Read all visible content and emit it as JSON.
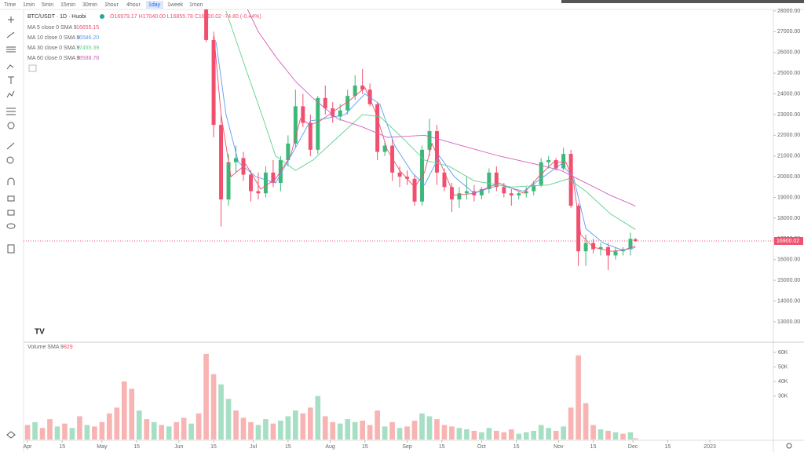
{
  "toolbar": {
    "intervals": [
      "Time",
      "1min",
      "5min",
      "15min",
      "30min",
      "1hour",
      "4hour",
      "1day",
      "1week",
      "1mon"
    ],
    "active": 7
  },
  "header": {
    "symbol": "BTC/USDT · 1D · Huobi",
    "ohlc": "O16979.17 H17040.00 L16855.78 C16900.02 -74.80 (-0.44%)",
    "volume_label": "Volume SMA 9",
    "volume_value": "829"
  },
  "chart_data": {
    "type": "candlestick",
    "up_color": "#3cb878",
    "down_color": "#f0506e",
    "x": [
      72,
      75,
      78,
      81,
      84,
      87,
      90,
      93,
      96,
      99,
      102,
      105,
      108,
      111,
      114,
      117,
      120,
      123,
      126,
      129,
      132,
      135,
      138,
      141,
      144,
      147,
      150,
      153,
      156,
      159,
      162,
      165,
      168,
      171,
      174,
      177,
      180,
      183,
      186,
      189,
      192,
      195,
      198,
      201,
      204,
      207,
      210,
      213,
      216,
      219,
      222,
      225,
      228,
      231,
      234,
      237,
      240,
      243,
      245
    ],
    "open": [
      28300,
      26600,
      22500,
      18900,
      20700,
      20900,
      20100,
      19300,
      19200,
      20200,
      19700,
      20800,
      21600,
      23400,
      22600,
      21300,
      23800,
      23300,
      22900,
      23200,
      23900,
      24400,
      24200,
      23500,
      21200,
      21500,
      20200,
      20000,
      19900,
      18800,
      21300,
      22200,
      20200,
      19500,
      18900,
      19200,
      19300,
      19100,
      19400,
      20200,
      19500,
      19200,
      19100,
      19200,
      19300,
      19600,
      20700,
      20800,
      20400,
      21100,
      18600,
      16400,
      16800,
      16500,
      16600,
      16200,
      16400,
      16500,
      16979.17
    ],
    "high": [
      28400,
      26800,
      23000,
      21100,
      21500,
      21200,
      20300,
      20200,
      20500,
      20800,
      21000,
      22000,
      24200,
      24000,
      23000,
      23900,
      24400,
      23600,
      23500,
      24200,
      24900,
      25200,
      24500,
      23600,
      21700,
      21800,
      20500,
      20300,
      20100,
      21500,
      22800,
      22500,
      20400,
      19700,
      19500,
      20000,
      19600,
      19500,
      20400,
      20500,
      19700,
      19400,
      19300,
      19500,
      19800,
      20900,
      21000,
      20900,
      21400,
      21300,
      18700,
      17200,
      17000,
      16800,
      16800,
      16600,
      16600,
      17300,
      17040
    ],
    "low": [
      26500,
      21900,
      17600,
      18600,
      20200,
      19800,
      18800,
      18900,
      19000,
      19500,
      19300,
      20500,
      21400,
      22400,
      21000,
      21100,
      23000,
      22600,
      22700,
      23000,
      23700,
      24000,
      23400,
      20800,
      21000,
      19800,
      19500,
      19600,
      18600,
      18600,
      21000,
      19600,
      19300,
      18300,
      18500,
      18900,
      18800,
      18900,
      19200,
      19300,
      19000,
      18600,
      18900,
      19000,
      19100,
      19500,
      20400,
      20300,
      20300,
      18500,
      15700,
      15700,
      16300,
      16200,
      15500,
      16000,
      16200,
      16200,
      16855.78
    ],
    "close": [
      26600,
      22500,
      18900,
      20700,
      20900,
      20100,
      19300,
      19200,
      20200,
      19700,
      20800,
      21600,
      23400,
      22600,
      21300,
      23800,
      23300,
      22900,
      23200,
      23900,
      24400,
      24200,
      23500,
      21200,
      21500,
      20200,
      20000,
      19900,
      18800,
      21300,
      22200,
      20200,
      19500,
      18900,
      19200,
      19300,
      19100,
      19400,
      20200,
      19500,
      19200,
      19100,
      19200,
      19300,
      19600,
      20700,
      20800,
      20400,
      21100,
      18600,
      16400,
      16800,
      16500,
      16600,
      16200,
      16400,
      16500,
      17000,
      16900.02
    ],
    "series": [
      {
        "name": "MA 5 close 0 SMA 9",
        "legend_value": "16655.15",
        "color": "#f0506e",
        "x": [
          75,
          78,
          82,
          88,
          94,
          100,
          106,
          110,
          114,
          118,
          124,
          130,
          136,
          140,
          145,
          150,
          156,
          160,
          163,
          167,
          172,
          180,
          190,
          200,
          206,
          212,
          217,
          220,
          223,
          228,
          235,
          240,
          245
        ],
        "values": [
          27000,
          23000,
          20000,
          20600,
          19400,
          19900,
          21000,
          22800,
          22500,
          22700,
          23200,
          23700,
          24300,
          23200,
          21300,
          20300,
          19500,
          20200,
          21600,
          20500,
          19100,
          19200,
          19700,
          19200,
          20000,
          20700,
          20700,
          19800,
          17200,
          16600,
          16400,
          16450,
          16655.15
        ]
      },
      {
        "name": "MA 10 close 0 SMA 9",
        "legend_value": "16586.20",
        "color": "#5b9cf6",
        "x": [
          76,
          80,
          85,
          92,
          100,
          108,
          114,
          120,
          128,
          136,
          142,
          148,
          155,
          160,
          166,
          172,
          180,
          190,
          200,
          208,
          215,
          220,
          225,
          232,
          240,
          245
        ],
        "values": [
          26500,
          23000,
          20700,
          20000,
          19700,
          21400,
          22700,
          22800,
          23000,
          24000,
          23500,
          21500,
          20200,
          19600,
          21000,
          20000,
          19200,
          19600,
          19300,
          20000,
          20600,
          20000,
          17500,
          16800,
          16450,
          16586.2
        ]
      },
      {
        "name": "MA 30 close 0 SMA 9",
        "legend_value": "17455.39",
        "color": "#5fd08a",
        "x": [
          80,
          88,
          95,
          100,
          108,
          115,
          125,
          135,
          142,
          150,
          160,
          170,
          180,
          195,
          210,
          218,
          225,
          235,
          245
        ],
        "values": [
          28000,
          25200,
          22800,
          21000,
          20300,
          20800,
          21900,
          23000,
          22900,
          22000,
          20800,
          20500,
          19800,
          19500,
          19600,
          19900,
          19300,
          18200,
          17455.39
        ]
      },
      {
        "name": "MA 60 close 0 SMA 9",
        "legend_value": "18588.78",
        "color": "#d45fbb",
        "x": [
          85,
          93,
          100,
          108,
          115,
          125,
          135,
          145,
          160,
          175,
          190,
          205,
          215,
          225,
          235,
          245
        ],
        "values": [
          29000,
          27000,
          25800,
          24600,
          23800,
          22800,
          22400,
          21900,
          22000,
          21500,
          21000,
          20600,
          20300,
          19700,
          19100,
          18588.78
        ]
      }
    ],
    "last_price": {
      "value": 16900.02,
      "label": "16900.02"
    },
    "ylim": [
      12050,
      28340
    ],
    "yticks": [
      {
        "value": 13000,
        "label": "13000.00"
      },
      {
        "value": 14000,
        "label": "14000.00"
      },
      {
        "value": 15000,
        "label": "15000.00"
      },
      {
        "value": 16000,
        "label": "16000.00"
      },
      {
        "value": 17000,
        "label": "17000.00"
      },
      {
        "value": 18000,
        "label": "18000.00"
      },
      {
        "value": 19000,
        "label": "19000.00"
      },
      {
        "value": 20000,
        "label": "20000.00"
      },
      {
        "value": 21000,
        "label": "21000.00"
      },
      {
        "value": 22000,
        "label": "22000.00"
      },
      {
        "value": 23000,
        "label": "23000.00"
      },
      {
        "value": 24000,
        "label": "24000.00"
      },
      {
        "value": 25000,
        "label": "25000.00"
      },
      {
        "value": 26000,
        "label": "26000.00"
      },
      {
        "value": 27000,
        "label": "27000.00"
      },
      {
        "value": 28000,
        "label": "28000.00"
      }
    ],
    "xlim": [
      -1.6,
      300.6
    ],
    "xticks": [
      {
        "value": 0,
        "label": "Apr"
      },
      {
        "value": 14,
        "label": "15"
      },
      {
        "value": 30,
        "label": "May"
      },
      {
        "value": 44,
        "label": "15"
      },
      {
        "value": 61,
        "label": "Jun"
      },
      {
        "value": 75,
        "label": "15"
      },
      {
        "value": 91,
        "label": "Jul"
      },
      {
        "value": 105,
        "label": "15"
      },
      {
        "value": 122,
        "label": "Aug"
      },
      {
        "value": 136,
        "label": "15"
      },
      {
        "value": 153,
        "label": "Sep"
      },
      {
        "value": 167,
        "label": "15"
      },
      {
        "value": 183,
        "label": "Oct"
      },
      {
        "value": 197,
        "label": "15"
      },
      {
        "value": 214,
        "label": "Nov"
      },
      {
        "value": 228,
        "label": "15"
      },
      {
        "value": 244,
        "label": "Dec"
      },
      {
        "value": 258,
        "label": "15"
      },
      {
        "value": 275,
        "label": "2023"
      }
    ],
    "volume": {
      "x": [
        0,
        3,
        6,
        9,
        12,
        15,
        18,
        21,
        24,
        27,
        30,
        33,
        36,
        39,
        42,
        45,
        48,
        51,
        54,
        57,
        60,
        63,
        66,
        69,
        72,
        75,
        78,
        81,
        84,
        87,
        90,
        93,
        96,
        99,
        102,
        105,
        108,
        111,
        114,
        117,
        120,
        123,
        126,
        129,
        132,
        135,
        138,
        141,
        144,
        147,
        150,
        153,
        156,
        159,
        162,
        165,
        168,
        171,
        174,
        177,
        180,
        183,
        186,
        189,
        192,
        195,
        198,
        201,
        204,
        207,
        210,
        213,
        216,
        219,
        222,
        225,
        228,
        231,
        234,
        237,
        240,
        243,
        245
      ],
      "values": [
        10000,
        12000,
        8000,
        14000,
        9000,
        11000,
        8000,
        16000,
        10000,
        9000,
        12000,
        18000,
        22000,
        40000,
        35000,
        20000,
        14000,
        12000,
        10000,
        9000,
        12000,
        15000,
        11000,
        18000,
        59000,
        45000,
        38000,
        28000,
        20000,
        15000,
        12000,
        10000,
        14000,
        11000,
        13000,
        16000,
        20000,
        18000,
        22000,
        30000,
        16000,
        12000,
        11000,
        14000,
        12000,
        13000,
        10000,
        20000,
        9000,
        12000,
        8000,
        9000,
        13000,
        18000,
        16000,
        14000,
        10000,
        9000,
        8000,
        7000,
        6000,
        5000,
        8000,
        6000,
        5000,
        7000,
        4000,
        5000,
        6000,
        10000,
        8000,
        6000,
        9000,
        22000,
        58000,
        25000,
        10000,
        7000,
        6000,
        5000,
        4000,
        5000,
        829
      ],
      "up": [
        false,
        true,
        false,
        false,
        true,
        false,
        true,
        false,
        true,
        false,
        false,
        false,
        false,
        false,
        false,
        true,
        false,
        true,
        false,
        true,
        false,
        false,
        true,
        false,
        false,
        false,
        true,
        true,
        false,
        false,
        false,
        true,
        true,
        false,
        true,
        true,
        true,
        false,
        false,
        true,
        false,
        false,
        true,
        true,
        true,
        false,
        false,
        false,
        true,
        false,
        true,
        false,
        false,
        true,
        true,
        false,
        false,
        false,
        true,
        true,
        false,
        true,
        true,
        false,
        false,
        false,
        true,
        true,
        true,
        true,
        true,
        false,
        true,
        false,
        false,
        false,
        false,
        true,
        false,
        true,
        false,
        true,
        false
      ],
      "up_color": "#a6dfc4",
      "down_color": "#f8b3b3",
      "ylim": [
        0,
        64900
      ],
      "yticks": [
        {
          "value": 30000,
          "label": "30K"
        },
        {
          "value": 40000,
          "label": "40K"
        },
        {
          "value": 50000,
          "label": "50K"
        },
        {
          "value": 60000,
          "label": "60K"
        }
      ]
    }
  }
}
